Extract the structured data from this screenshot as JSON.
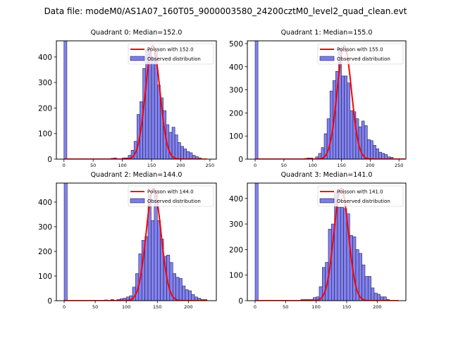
{
  "suptitle": "Data file: modeM0/AS1A07_160T05_9000003580_24200cztM0_level2_quad_clean.evt",
  "colors": {
    "bar_fill": "#7b7bf0",
    "bar_edge": "#22224a",
    "poisson": "#ff0000"
  },
  "chart_data": [
    {
      "type": "bar",
      "title": "Quadrant 0: Median=152.0",
      "legend": {
        "poisson_label": "Poisson with 152.0",
        "observed_label": "Observed distribution",
        "placement": "upper right"
      },
      "lambda": 152.0,
      "poisson_peak": 445,
      "poisson_range": [
        0,
        245
      ],
      "bin_width": 5,
      "xlim": [
        -13,
        261
      ],
      "ylim": [
        0,
        463
      ],
      "xticks": [
        0,
        50,
        100,
        150,
        200,
        250
      ],
      "yticks": [
        0,
        100,
        200,
        300,
        400
      ],
      "bins": [
        0,
        80,
        85,
        100,
        105,
        110,
        115,
        120,
        125,
        130,
        135,
        140,
        145,
        150,
        155,
        160,
        165,
        170,
        175,
        180,
        185,
        190,
        195,
        200,
        205,
        210,
        215,
        220,
        225,
        230
      ],
      "counts": [
        2000,
        3,
        5,
        5,
        5,
        15,
        35,
        70,
        175,
        225,
        355,
        430,
        425,
        400,
        420,
        290,
        240,
        190,
        135,
        105,
        125,
        95,
        65,
        50,
        40,
        30,
        25,
        15,
        10,
        5
      ]
    },
    {
      "type": "bar",
      "title": "Quadrant 1: Median=155.0",
      "legend": {
        "poisson_label": "Poisson with 155.0",
        "observed_label": "Observed distribution",
        "placement": "upper right"
      },
      "lambda": 155.0,
      "poisson_peak": 490,
      "poisson_range": [
        0,
        260
      ],
      "bin_width": 5,
      "xlim": [
        -13.5,
        262
      ],
      "ylim": [
        0,
        512
      ],
      "xticks": [
        0,
        50,
        100,
        150,
        200,
        250
      ],
      "yticks": [
        0,
        100,
        200,
        300,
        400,
        500
      ],
      "bins": [
        0,
        75,
        85,
        90,
        95,
        105,
        110,
        115,
        120,
        125,
        130,
        135,
        140,
        145,
        150,
        155,
        160,
        165,
        170,
        175,
        180,
        185,
        190,
        195,
        200,
        205,
        210,
        215,
        220,
        225,
        230,
        235,
        240
      ],
      "counts": [
        2000,
        2,
        3,
        5,
        5,
        10,
        25,
        50,
        110,
        175,
        295,
        340,
        380,
        480,
        360,
        360,
        330,
        210,
        205,
        175,
        140,
        165,
        145,
        85,
        80,
        60,
        45,
        30,
        25,
        20,
        10,
        8,
        2
      ]
    },
    {
      "type": "bar",
      "title": "Quadrant 2: Median=144.0",
      "legend": {
        "poisson_label": "Poisson with 144.0",
        "observed_label": "Observed distribution",
        "placement": "upper right"
      },
      "lambda": 144.0,
      "poisson_peak": 455,
      "poisson_range": [
        0,
        230
      ],
      "bin_width": 5,
      "xlim": [
        -12.5,
        245
      ],
      "ylim": [
        0,
        477
      ],
      "xticks": [
        0,
        50,
        100,
        150,
        200
      ],
      "yticks": [
        0,
        100,
        200,
        300,
        400
      ],
      "bins": [
        0,
        55,
        65,
        75,
        85,
        90,
        95,
        100,
        105,
        110,
        115,
        120,
        125,
        130,
        135,
        140,
        145,
        150,
        155,
        160,
        165,
        170,
        175,
        180,
        185,
        190,
        195,
        200,
        205,
        210,
        215,
        220,
        225
      ],
      "counts": [
        2000,
        1,
        3,
        5,
        5,
        8,
        10,
        15,
        20,
        55,
        110,
        190,
        245,
        260,
        430,
        325,
        430,
        325,
        250,
        180,
        185,
        155,
        110,
        95,
        90,
        60,
        45,
        40,
        25,
        15,
        10,
        5,
        5
      ]
    },
    {
      "type": "bar",
      "title": "Quadrant 3: Median=141.0",
      "legend": {
        "poisson_label": "Poisson with 141.0",
        "observed_label": "Observed distribution",
        "placement": "upper right"
      },
      "lambda": 141.0,
      "poisson_peak": 440,
      "poisson_range": [
        0,
        235
      ],
      "bin_width": 5,
      "xlim": [
        -12.7,
        247
      ],
      "ylim": [
        0,
        460
      ],
      "xticks": [
        0,
        50,
        100,
        150,
        200
      ],
      "yticks": [
        0,
        100,
        200,
        300,
        400
      ],
      "bins": [
        0,
        15,
        25,
        40,
        75,
        80,
        85,
        90,
        95,
        100,
        105,
        110,
        115,
        120,
        125,
        130,
        135,
        140,
        145,
        150,
        155,
        160,
        165,
        170,
        175,
        180,
        185,
        190,
        195,
        200,
        205,
        210,
        215
      ],
      "counts": [
        2000,
        2,
        2,
        2,
        5,
        5,
        5,
        5,
        12,
        15,
        55,
        130,
        150,
        280,
        300,
        425,
        365,
        365,
        360,
        340,
        255,
        250,
        200,
        185,
        140,
        95,
        95,
        50,
        30,
        25,
        15,
        15,
        5
      ]
    }
  ]
}
